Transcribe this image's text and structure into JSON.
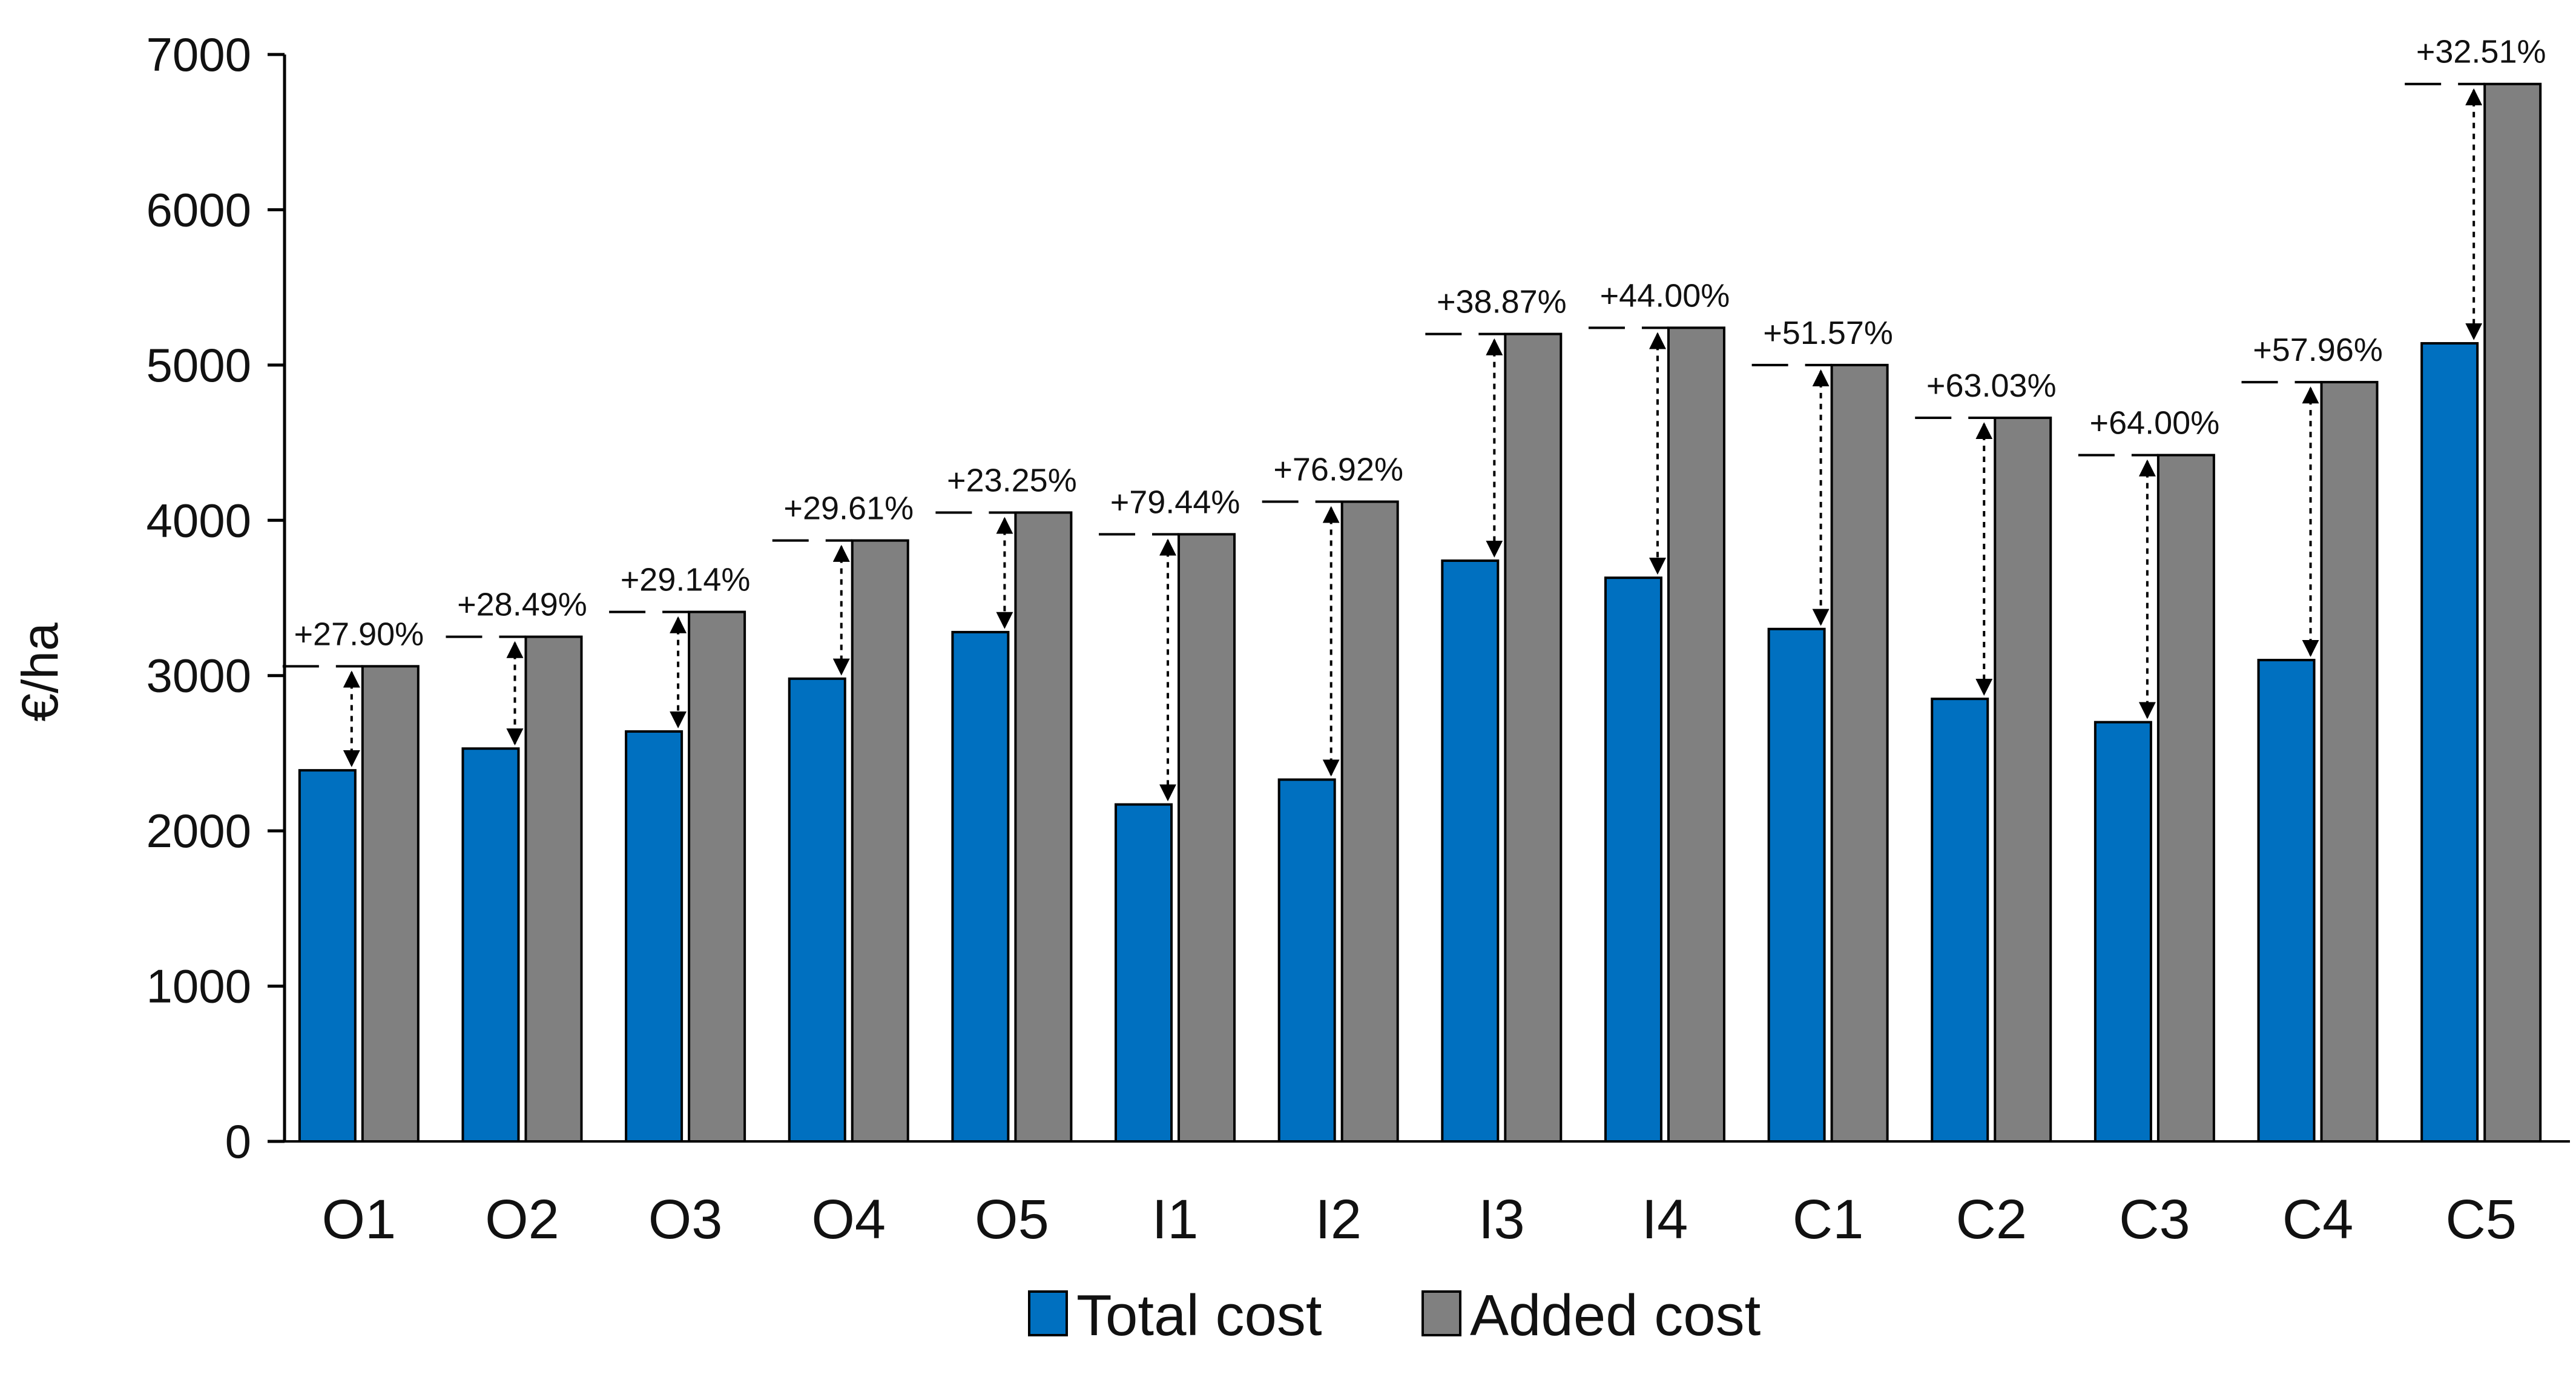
{
  "chart_data": {
    "type": "bar",
    "ylabel": "€/ha",
    "ylim": [
      0,
      7000
    ],
    "yticks": [
      0,
      1000,
      2000,
      3000,
      4000,
      5000,
      6000,
      7000
    ],
    "grid": false,
    "legend_position": "bottom",
    "categories": [
      "O1",
      "O2",
      "O3",
      "O4",
      "O5",
      "I1",
      "I2",
      "I3",
      "I4",
      "C1",
      "C2",
      "C3",
      "C4",
      "C5"
    ],
    "series": [
      {
        "name": "Total cost",
        "color": "#0070c0",
        "values": [
          2390,
          2530,
          2640,
          2980,
          3280,
          2170,
          2330,
          3740,
          3630,
          3300,
          2850,
          2700,
          3100,
          5140
        ]
      },
      {
        "name": "Added cost",
        "color": "#808080",
        "values": [
          3060,
          3250,
          3410,
          3870,
          4050,
          3910,
          4120,
          5200,
          5240,
          5000,
          4660,
          4420,
          4890,
          6810
        ]
      }
    ],
    "annotations": [
      "+27.90%",
      "+28.49%",
      "+29.14%",
      "+29.61%",
      "+23.25%",
      "+79.44%",
      "+76.92%",
      "+38.87%",
      "+44.00%",
      "+51.57%",
      "+63.03%",
      "+64.00%",
      "+57.96%",
      "+32.51%"
    ]
  }
}
